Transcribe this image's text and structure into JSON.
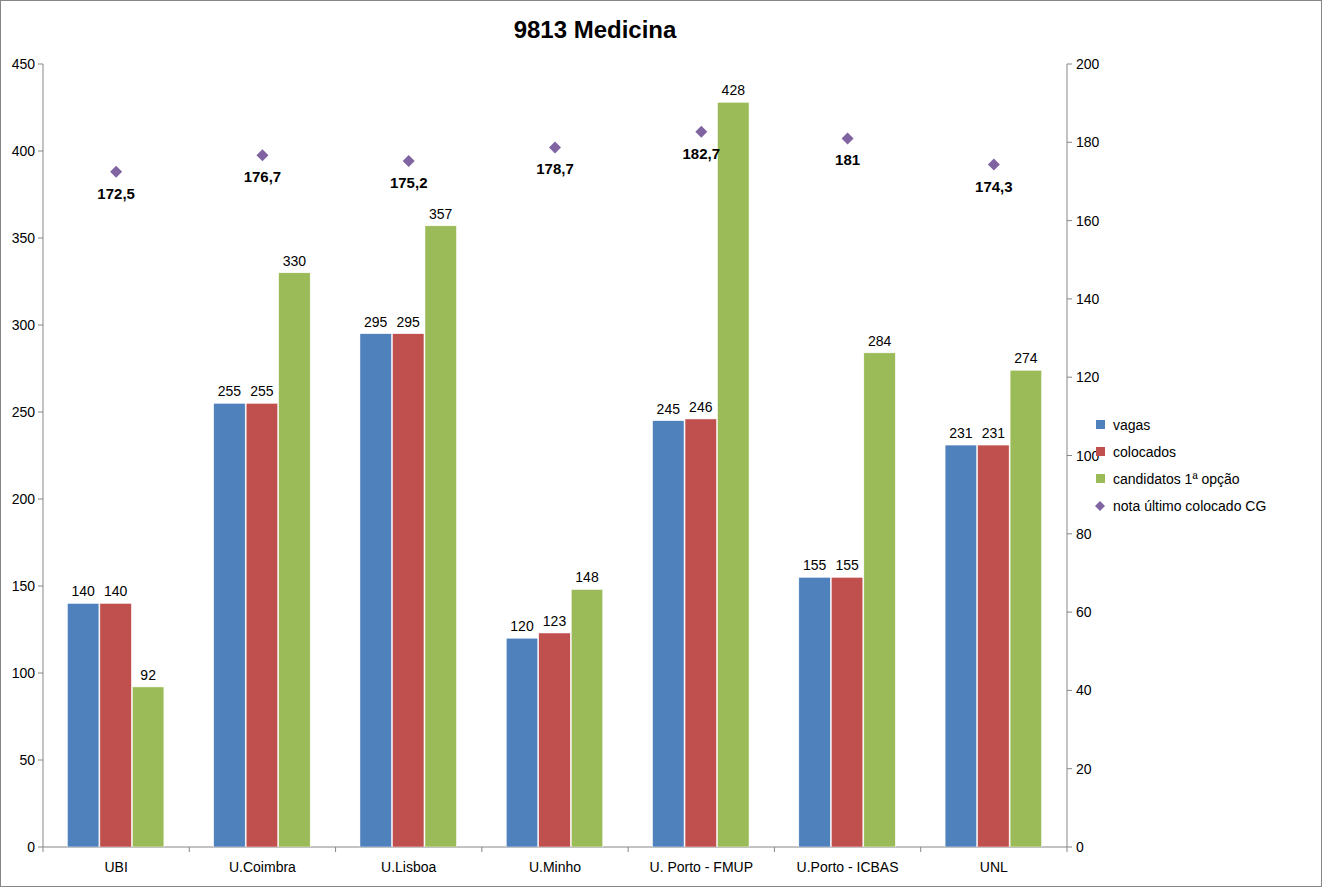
{
  "chart_data": {
    "type": "bar",
    "title": "9813 Medicina",
    "categories": [
      "UBI",
      "U.Coimbra",
      "U.Lisboa",
      "U.Minho",
      "U. Porto - FMUP",
      "U.Porto - ICBAS",
      "UNL"
    ],
    "series": [
      {
        "name": "vagas",
        "color": "#4f81bd",
        "values": [
          140,
          255,
          295,
          120,
          245,
          155,
          231
        ]
      },
      {
        "name": "colocados",
        "color": "#c0504d",
        "values": [
          140,
          255,
          295,
          123,
          246,
          155,
          231
        ]
      },
      {
        "name": "candidatos 1ª opção",
        "color": "#9bbb59",
        "values": [
          92,
          330,
          357,
          148,
          428,
          284,
          274
        ]
      },
      {
        "name": "nota último colocado CG",
        "color": "#8064a2",
        "type": "scatter",
        "marker": "diamond",
        "axis": "y2",
        "values": [
          172.5,
          176.7,
          175.2,
          178.7,
          182.7,
          181,
          174.3
        ],
        "value_labels": [
          "172,5",
          "176,7",
          "175,2",
          "178,7",
          "182,7",
          "181",
          "174,3"
        ]
      }
    ],
    "ylim": [
      0,
      450
    ],
    "yticks": [
      0,
      50,
      100,
      150,
      200,
      250,
      300,
      350,
      400,
      450
    ],
    "y2lim": [
      0,
      200
    ],
    "y2ticks": [
      0,
      20,
      40,
      60,
      80,
      100,
      120,
      140,
      160,
      180,
      200
    ],
    "grid": false,
    "legend": "right",
    "data_labels": true
  }
}
